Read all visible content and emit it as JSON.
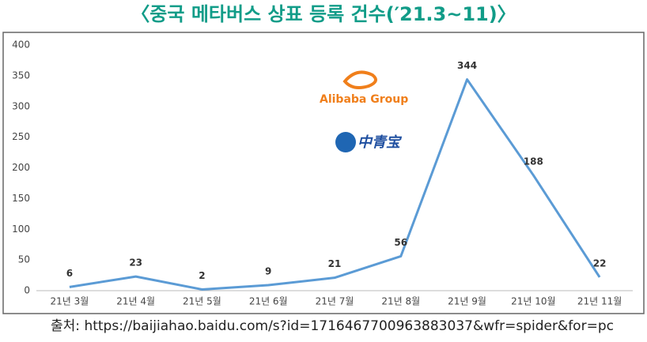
{
  "chart_data": {
    "type": "line",
    "title": "〈중국 메타버스 상표 등록 건수(′21.3~11)〉",
    "categories": [
      "21년 3월",
      "21년 4월",
      "21년 5월",
      "21년 6월",
      "21년 7월",
      "21년 8월",
      "21년 9월",
      "21년 10월",
      "21년 11월"
    ],
    "series": [
      {
        "name": "상표 등록 건수",
        "color": "#5b9bd5",
        "values": [
          6,
          23,
          2,
          9,
          21,
          56,
          344,
          188,
          22
        ]
      }
    ],
    "ylim": [
      0,
      400
    ],
    "yticks": [
      0,
      50,
      100,
      150,
      200,
      250,
      300,
      350,
      400
    ],
    "grid": false,
    "annotations": [
      "Alibaba Group",
      "中青宝"
    ],
    "source": "출처: https://baijiahao.baidu.com/s?id=1716467700963883037&wfr=spider&for=pc"
  }
}
